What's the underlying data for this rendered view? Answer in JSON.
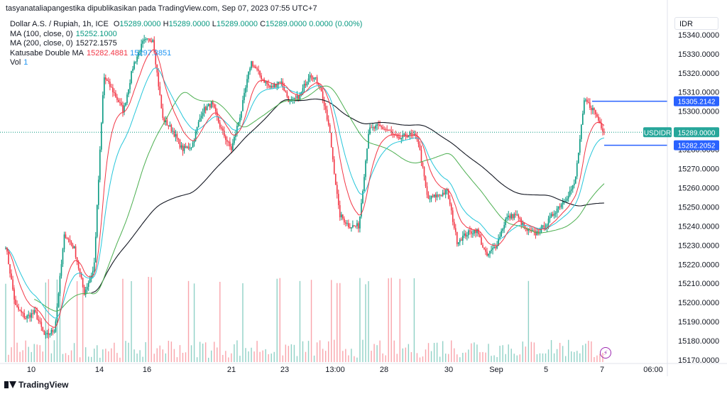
{
  "header": {
    "text": "tasyanataliapangestika dipublikasikan pada TradingView.com, Sep 07, 2023 07:55 UTC+7"
  },
  "legend": {
    "symbol_name": "Dollar A.S. / Rupiah, 1h, ICE",
    "o_label": "O",
    "o_value": "15289.0000",
    "h_label": "H",
    "h_value": "15289.0000",
    "l_label": "L",
    "l_value": "15289.0000",
    "c_label": "C",
    "c_value": "15289.0000",
    "change": "0.0000 (0.00%)",
    "ma100_label": "MA (100, close, 0)",
    "ma100_value": "15252.1000",
    "ma200_label": "MA (200, close, 0)",
    "ma200_value": "15272.1575",
    "kdm_label": "Katusabe Double MA",
    "kdm_value1": "15282.4881",
    "kdm_value2": "15297.3851",
    "vol_label": "Vol",
    "vol_value": "1"
  },
  "currency": "IDR",
  "footer": {
    "brand": "TradingView"
  },
  "colors": {
    "up": "#089981",
    "down": "#f23645",
    "ma100": "#4caf50",
    "ma200": "#131722",
    "fast": "#f23645",
    "slow": "#26c6da",
    "level": "#2962ff"
  },
  "chart_data": {
    "type": "candlestick",
    "symbol": "USDIDR",
    "interval": "1h",
    "y_ticks": [
      15170,
      15180,
      15190,
      15200,
      15210,
      15220,
      15230,
      15240,
      15250,
      15260,
      15270,
      15280,
      15290,
      15300,
      15310,
      15320,
      15330,
      15340
    ],
    "y_tick_labels": [
      "15170.0000",
      "15180.0000",
      "15190.0000",
      "15200.0000",
      "15210.0000",
      "15220.0000",
      "15230.0000",
      "15240.0000",
      "15250.0000",
      "15260.0000",
      "15270.0000",
      "15280.0000",
      "15290.0000",
      "15300.0000",
      "15310.0000",
      "15320.0000",
      "15330.0000",
      "15340.0000"
    ],
    "ylim": [
      15167,
      15350
    ],
    "x_tick_labels": [
      "10",
      "14",
      "16",
      "21",
      "23",
      "13:00",
      "28",
      "30",
      "Sep",
      "5",
      "7",
      "06:00"
    ],
    "price_labels": [
      {
        "name": "USDIDR",
        "value": "15289.0000",
        "price": 15289
      },
      {
        "name": "",
        "value": "15305.2142",
        "price": 15305.2
      },
      {
        "name": "",
        "value": "15282.2052",
        "price": 15282.2
      }
    ],
    "anchors": [
      [
        0,
        15230
      ],
      [
        1,
        15198
      ],
      [
        2,
        15192
      ],
      [
        3,
        15195
      ],
      [
        4,
        15182
      ],
      [
        5,
        15186
      ],
      [
        6,
        15236
      ],
      [
        7,
        15228
      ],
      [
        8,
        15205
      ],
      [
        9,
        15218
      ],
      [
        10,
        15318
      ],
      [
        11,
        15310
      ],
      [
        12,
        15300
      ],
      [
        13,
        15324
      ],
      [
        14,
        15336
      ],
      [
        15,
        15338
      ],
      [
        16,
        15296
      ],
      [
        17,
        15290
      ],
      [
        18,
        15280
      ],
      [
        19,
        15282
      ],
      [
        20,
        15300
      ],
      [
        21,
        15304
      ],
      [
        22,
        15290
      ],
      [
        23,
        15280
      ],
      [
        24,
        15300
      ],
      [
        25,
        15326
      ],
      [
        26,
        15318
      ],
      [
        27,
        15312
      ],
      [
        28,
        15316
      ],
      [
        29,
        15304
      ],
      [
        30,
        15308
      ],
      [
        31,
        15320
      ],
      [
        32,
        15314
      ],
      [
        33,
        15290
      ],
      [
        34,
        15246
      ],
      [
        35,
        15240
      ],
      [
        36,
        15240
      ],
      [
        37,
        15290
      ],
      [
        38,
        15292
      ],
      [
        39,
        15290
      ],
      [
        40,
        15285
      ],
      [
        41,
        15288
      ],
      [
        42,
        15286
      ],
      [
        43,
        15254
      ],
      [
        44,
        15256
      ],
      [
        45,
        15258
      ],
      [
        46,
        15232
      ],
      [
        47,
        15236
      ],
      [
        48,
        15238
      ],
      [
        49,
        15224
      ],
      [
        50,
        15230
      ],
      [
        51,
        15244
      ],
      [
        52,
        15246
      ],
      [
        53,
        15238
      ],
      [
        54,
        15236
      ],
      [
        55,
        15240
      ],
      [
        56,
        15248
      ],
      [
        57,
        15254
      ],
      [
        58,
        15262
      ],
      [
        59,
        15306
      ],
      [
        60,
        15300
      ],
      [
        61,
        15289
      ]
    ],
    "series": [
      {
        "name": "MA (100, close, 0)",
        "value": "15252.1000"
      },
      {
        "name": "MA (200, close, 0)",
        "value": "15272.1575"
      },
      {
        "name": "Katusabe Double MA",
        "value": "15282.4881"
      },
      {
        "name": "Vol",
        "value": "1"
      }
    ]
  }
}
